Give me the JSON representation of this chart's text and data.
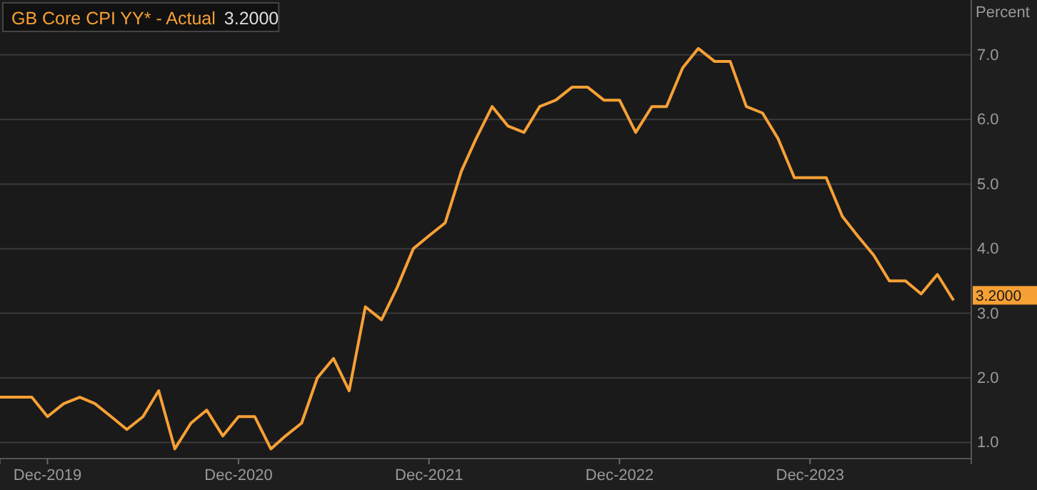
{
  "chart_data": {
    "type": "line",
    "ylabel": "Percent",
    "x": [
      "2019-09",
      "2019-10",
      "2019-11",
      "2019-12",
      "2020-01",
      "2020-02",
      "2020-03",
      "2020-04",
      "2020-05",
      "2020-06",
      "2020-07",
      "2020-08",
      "2020-09",
      "2020-10",
      "2020-11",
      "2020-12",
      "2021-01",
      "2021-02",
      "2021-03",
      "2021-04",
      "2021-05",
      "2021-06",
      "2021-07",
      "2021-08",
      "2021-09",
      "2021-10",
      "2021-11",
      "2021-12",
      "2022-01",
      "2022-02",
      "2022-03",
      "2022-04",
      "2022-05",
      "2022-06",
      "2022-07",
      "2022-08",
      "2022-09",
      "2022-10",
      "2022-11",
      "2022-12",
      "2023-01",
      "2023-02",
      "2023-03",
      "2023-04",
      "2023-05",
      "2023-06",
      "2023-07",
      "2023-08",
      "2023-09",
      "2023-10",
      "2023-11",
      "2023-12",
      "2024-01",
      "2024-02",
      "2024-03",
      "2024-04",
      "2024-05",
      "2024-06",
      "2024-07",
      "2024-08",
      "2024-09"
    ],
    "series": [
      {
        "name": "GB Core CPI YY* - Actual",
        "color": "#f7a035",
        "values": [
          1.7,
          1.7,
          1.7,
          1.4,
          1.6,
          1.7,
          1.6,
          1.4,
          1.2,
          1.4,
          1.8,
          0.9,
          1.3,
          1.5,
          1.1,
          1.4,
          1.4,
          0.9,
          1.1,
          1.3,
          2.0,
          2.3,
          1.8,
          3.1,
          2.9,
          3.4,
          4.0,
          4.2,
          4.4,
          5.2,
          5.7,
          6.2,
          5.9,
          5.8,
          6.2,
          6.3,
          6.5,
          6.5,
          6.3,
          6.3,
          5.8,
          6.2,
          6.2,
          6.8,
          7.1,
          6.9,
          6.9,
          6.2,
          6.1,
          5.7,
          5.1,
          5.1,
          5.1,
          4.5,
          4.2,
          3.9,
          3.5,
          3.5,
          3.3,
          3.6,
          3.2
        ],
        "value_labels": [
          null,
          null,
          null,
          null,
          null,
          null,
          null,
          null,
          null,
          null,
          null,
          null,
          null,
          null,
          null,
          null,
          null,
          null,
          null,
          null,
          null,
          null,
          null,
          null,
          null,
          null,
          null,
          null,
          null,
          null,
          null,
          null,
          null,
          null,
          null,
          null,
          null,
          null,
          null,
          null,
          null,
          null,
          null,
          null,
          null,
          null,
          null,
          null,
          null,
          null,
          null,
          null,
          null,
          null,
          null,
          null,
          null,
          null,
          null,
          null,
          "3.2000"
        ]
      }
    ],
    "xlim": [
      "2019-09-01",
      "2024-10-05"
    ],
    "xticks": [
      {
        "value": "2019-12",
        "label": "Dec-2019"
      },
      {
        "value": "2020-12",
        "label": "Dec-2020"
      },
      {
        "value": "2021-12",
        "label": "Dec-2021"
      },
      {
        "value": "2022-12",
        "label": "Dec-2022"
      },
      {
        "value": "2023-12",
        "label": "Dec-2023"
      }
    ],
    "ylim": [
      0.75,
      7.85
    ],
    "yticks": [
      {
        "value": 1,
        "label": "1.0"
      },
      {
        "value": 2,
        "label": "2.0"
      },
      {
        "value": 3,
        "label": "3.0"
      },
      {
        "value": 4,
        "label": "4.0"
      },
      {
        "value": 5,
        "label": "5.0"
      },
      {
        "value": 6,
        "label": "6.0"
      },
      {
        "value": 7,
        "label": "7.0"
      }
    ],
    "grid": "y",
    "legend": "top left",
    "marker": "none",
    "line_style": "solid"
  }
}
